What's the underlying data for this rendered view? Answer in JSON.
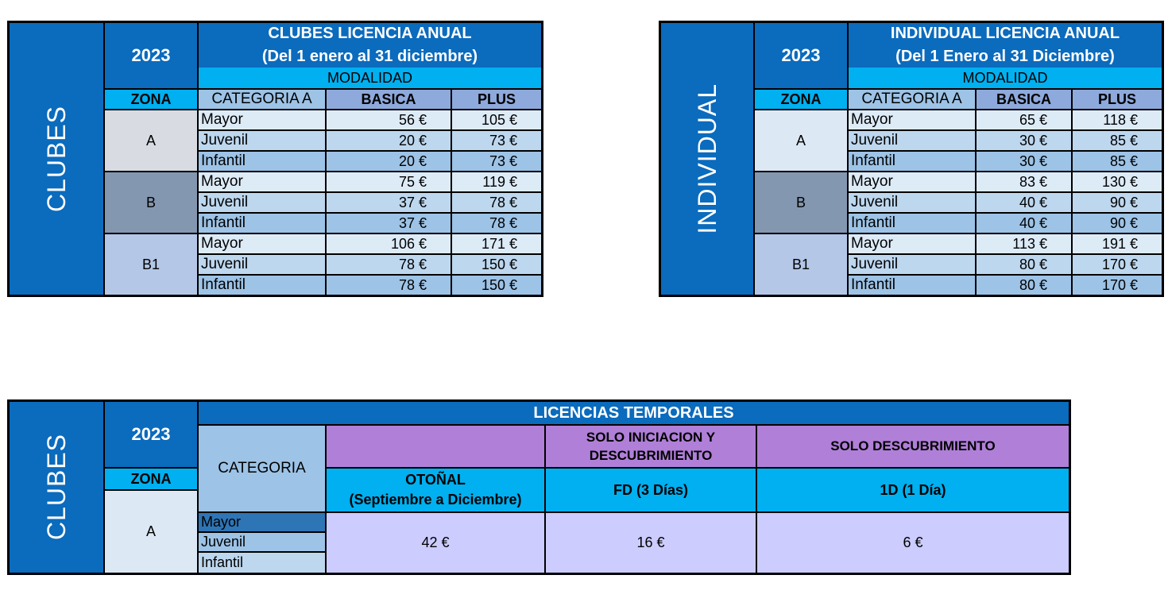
{
  "clubes": {
    "side": "CLUBES",
    "year": "2023",
    "title1": "CLUBES LICENCIA ANUAL",
    "title2": "(Del 1 enero al 31 diciembre)",
    "modalidad": "MODALIDAD",
    "zona": "ZONA",
    "categoria": "CATEGORIA A",
    "basica": "BASICA",
    "plus": "PLUS",
    "zones": [
      "A",
      "B",
      "B1"
    ],
    "rows": [
      {
        "cat": "Mayor",
        "basica": "56 €",
        "plus": "105 €"
      },
      {
        "cat": "Juvenil",
        "basica": "20 €",
        "plus": "73 €"
      },
      {
        "cat": "Infantil",
        "basica": "20 €",
        "plus": "73 €"
      },
      {
        "cat": "Mayor",
        "basica": "75 €",
        "plus": "119 €"
      },
      {
        "cat": "Juvenil",
        "basica": "37 €",
        "plus": "78 €"
      },
      {
        "cat": "Infantil",
        "basica": "37 €",
        "plus": "78 €"
      },
      {
        "cat": "Mayor",
        "basica": "106 €",
        "plus": "171 €"
      },
      {
        "cat": "Juvenil",
        "basica": "78 €",
        "plus": "150 €"
      },
      {
        "cat": "Infantil",
        "basica": "78 €",
        "plus": "150 €"
      }
    ]
  },
  "individual": {
    "side": "INDIVIDUAL",
    "year": "2023",
    "title1": "INDIVIDUAL LICENCIA ANUAL",
    "title2": "(Del 1 Enero al 31 Diciembre)",
    "modalidad": "MODALIDAD",
    "zona": "ZONA",
    "categoria": "CATEGORIA A",
    "basica": "BASICA",
    "plus": "PLUS",
    "zones": [
      "A",
      "B",
      "B1"
    ],
    "rows": [
      {
        "cat": "Mayor",
        "basica": "65 €",
        "plus": "118 €"
      },
      {
        "cat": "Juvenil",
        "basica": "30 €",
        "plus": "85 €"
      },
      {
        "cat": "Infantil",
        "basica": "30 €",
        "plus": "85 €"
      },
      {
        "cat": "Mayor",
        "basica": "83 €",
        "plus": "130 €"
      },
      {
        "cat": "Juvenil",
        "basica": "40 €",
        "plus": "90 €"
      },
      {
        "cat": "Infantil",
        "basica": "40 €",
        "plus": "90 €"
      },
      {
        "cat": "Mayor",
        "basica": "113 €",
        "plus": "191 €"
      },
      {
        "cat": "Juvenil",
        "basica": "80 €",
        "plus": "170 €"
      },
      {
        "cat": "Infantil",
        "basica": "80 €",
        "plus": "170 €"
      }
    ]
  },
  "temporales": {
    "side": "CLUBES",
    "year": "2023",
    "title": "LICENCIAS TEMPORALES",
    "zona": "ZONA",
    "zone": "A",
    "categoria": "CATEGORIA",
    "col1_top": "",
    "col2_top1": "SOLO INICIACION Y",
    "col2_top2": "DESCUBRIMIENTO",
    "col3_top": "SOLO DESCUBRIMIENTO",
    "col1_sub1": "OTOÑAL",
    "col1_sub2": "(Septiembre a Diciembre)",
    "col2_sub": "FD (3 Días)",
    "col3_sub": "1D (1 Día)",
    "cats": [
      "Mayor",
      "Juvenil",
      "Infantil"
    ],
    "price1": "42 €",
    "price2": "16 €",
    "price3": "6 €"
  }
}
